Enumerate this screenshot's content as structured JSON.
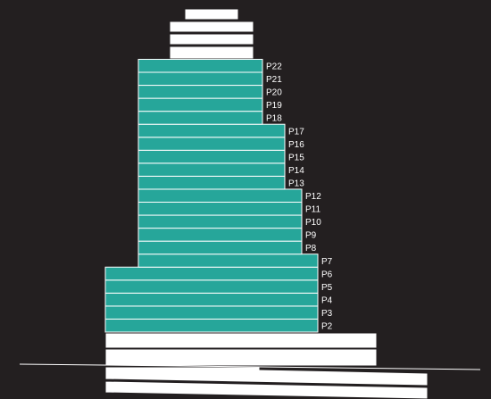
{
  "diagram": {
    "colors": {
      "background": "#231f20",
      "floor_fill": "#26a69a",
      "floor_edge": "#ffffff",
      "cap_fill": "#ffffff",
      "label": "#ffffff",
      "ground_line": "#ffffff"
    },
    "floors": [
      {
        "label": "P2",
        "tier": "base"
      },
      {
        "label": "P3",
        "tier": "base"
      },
      {
        "label": "P4",
        "tier": "base"
      },
      {
        "label": "P5",
        "tier": "base"
      },
      {
        "label": "P6",
        "tier": "base"
      },
      {
        "label": "P7",
        "tier": "lower"
      },
      {
        "label": "P8",
        "tier": "middle"
      },
      {
        "label": "P9",
        "tier": "middle"
      },
      {
        "label": "P10",
        "tier": "middle"
      },
      {
        "label": "P11",
        "tier": "middle"
      },
      {
        "label": "P12",
        "tier": "middle"
      },
      {
        "label": "P13",
        "tier": "upper"
      },
      {
        "label": "P14",
        "tier": "upper"
      },
      {
        "label": "P15",
        "tier": "upper"
      },
      {
        "label": "P16",
        "tier": "upper"
      },
      {
        "label": "P17",
        "tier": "upper"
      },
      {
        "label": "P18",
        "tier": "top"
      },
      {
        "label": "P19",
        "tier": "top"
      },
      {
        "label": "P20",
        "tier": "top"
      },
      {
        "label": "P21",
        "tier": "top"
      },
      {
        "label": "P22",
        "tier": "top"
      }
    ]
  }
}
